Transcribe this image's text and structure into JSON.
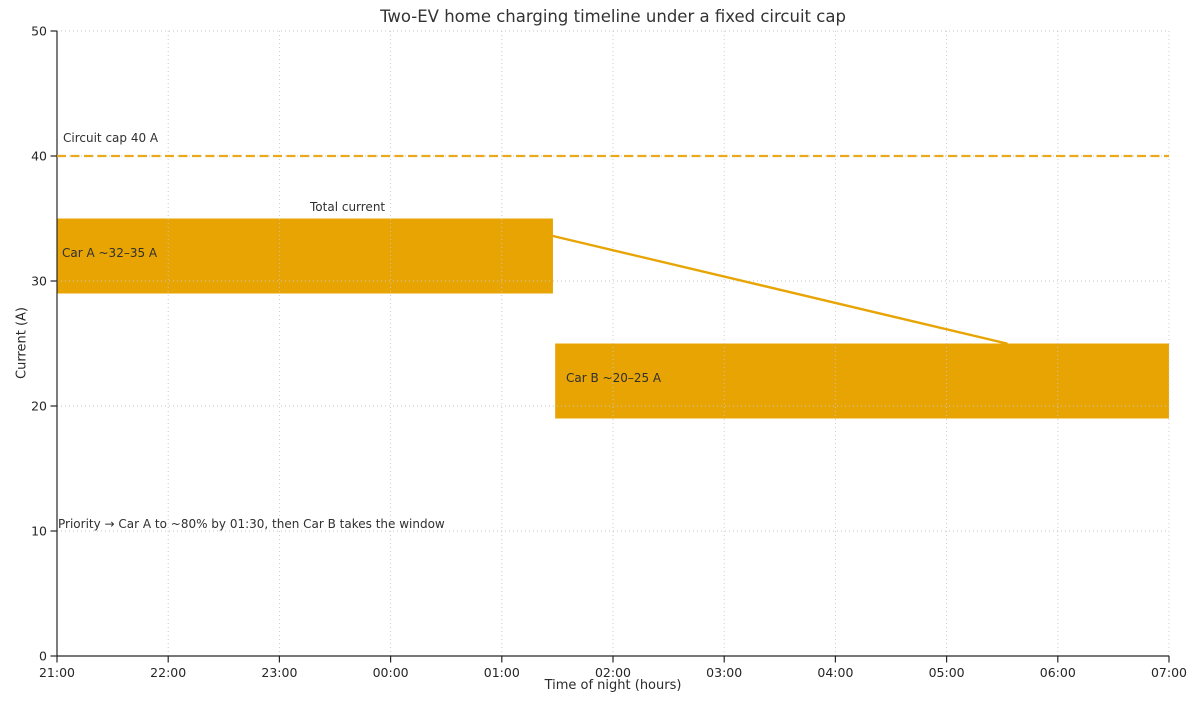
{
  "chart_data": {
    "type": "bar",
    "subtype": "horizontal-time-span bars with line overlay",
    "title": "Two-EV home charging timeline under a fixed circuit cap",
    "xlabel": "Time of night (hours)",
    "ylabel": "Current (A)",
    "x_tick_labels": [
      "21:00",
      "22:00",
      "23:00",
      "00:00",
      "01:00",
      "02:00",
      "03:00",
      "04:00",
      "05:00",
      "06:00",
      "07:00"
    ],
    "x_axis_hours_span": [
      0,
      10
    ],
    "y_ticks": [
      0,
      10,
      20,
      30,
      40,
      50
    ],
    "ylim": [
      0,
      50
    ],
    "grid": {
      "visible": true,
      "style": "dotted",
      "drawn_over_bars": true,
      "color": "#c6c6c6"
    },
    "series": [
      {
        "name": "car-a",
        "label": "Car A ~32–35 A",
        "kind": "span",
        "start_hour": 0,
        "end_hour": 4.46,
        "start_time": "21:00",
        "end_time": "01:30",
        "amp_low": 29,
        "amp_high": 35,
        "color": "#E8A402"
      },
      {
        "name": "car-b",
        "label": "Car B ~20–25 A",
        "kind": "span",
        "start_hour": 4.48,
        "end_hour": 10,
        "start_time": "01:30",
        "end_time": "07:00",
        "amp_low": 19,
        "amp_high": 25,
        "color": "#E8A402"
      },
      {
        "name": "total-current",
        "label": "Total current",
        "kind": "line",
        "points_hour_amp": [
          [
            4.46,
            33.6
          ],
          [
            8.54,
            25.0
          ]
        ],
        "color": "#E8A402",
        "width": 2.4
      },
      {
        "name": "circuit-cap",
        "label": "Circuit cap 40 A",
        "kind": "hline",
        "value_amp": 40,
        "style": "dashed",
        "color": "#EAAA1C",
        "width": 2.2
      }
    ],
    "annotation": "Priority → Car A to ~80% by 01:30, then Car B takes the window",
    "colors": {
      "bar": "#E8A402",
      "cap_line": "#EAAA1C",
      "total_line": "#E8A402",
      "text": "#2b2b2b",
      "axis": "#262626",
      "grid": "#c6c6c6",
      "background": "#ffffff"
    }
  }
}
